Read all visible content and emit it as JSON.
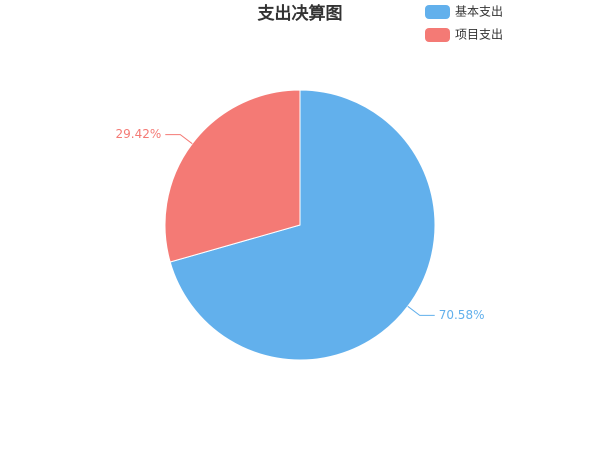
{
  "chart_data": {
    "type": "pie",
    "title": "支出决算图",
    "categories": [
      "基本支出",
      "项目支出"
    ],
    "values": [
      70.58,
      29.42
    ],
    "value_labels": [
      "70.58%",
      "29.42%"
    ],
    "colors": [
      "#62b0ec",
      "#f47a75"
    ],
    "legend": "top-right"
  }
}
